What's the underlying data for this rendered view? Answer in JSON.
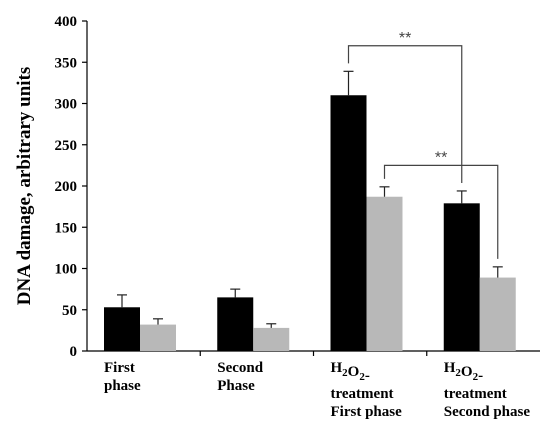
{
  "chart_data": {
    "type": "bar",
    "ylabel": "DNA damage, arbitrary units",
    "xlabel": "",
    "ylim": [
      0,
      400
    ],
    "yticks": [
      0,
      50,
      100,
      150,
      200,
      250,
      300,
      350,
      400
    ],
    "categories": [
      {
        "label_lines": [
          "First",
          "phase"
        ]
      },
      {
        "label_lines": [
          "Second",
          "Phase"
        ]
      },
      {
        "label_lines": [
          "H2O2-",
          "treatment",
          "First phase"
        ]
      },
      {
        "label_lines": [
          "H2O2-",
          "treatment",
          "Second phase"
        ]
      }
    ],
    "series": [
      {
        "color": "#000000",
        "values": [
          53,
          65,
          310,
          179
        ],
        "errors": [
          15,
          10,
          29,
          15
        ]
      },
      {
        "color": "#b8b8b8",
        "values": [
          32,
          28,
          187,
          89
        ],
        "errors": [
          7,
          5,
          12,
          13
        ]
      }
    ],
    "significance": [
      {
        "label": "**",
        "from": {
          "category": 2,
          "series": 0
        },
        "to": {
          "category": 3,
          "series": 0
        },
        "level": 370
      },
      {
        "label": "**",
        "from": {
          "category": 2,
          "series": 1
        },
        "to": {
          "category": 3,
          "series": 1
        },
        "level": 225
      }
    ],
    "legend": "none",
    "grid": false
  }
}
